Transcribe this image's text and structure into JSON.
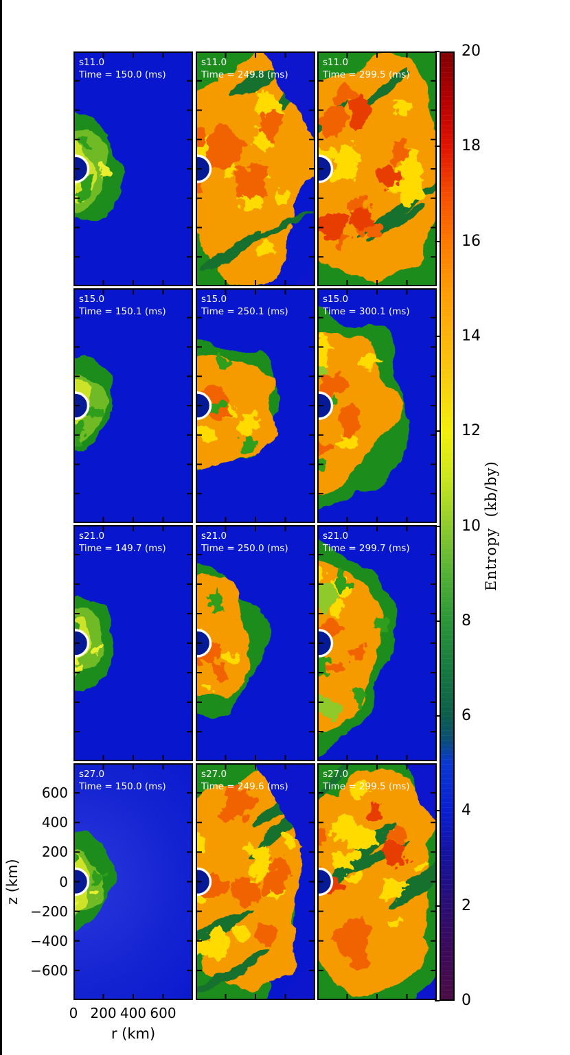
{
  "figure": {
    "xlabel": "r (km)",
    "ylabel": "z (km)",
    "x_tick_labels": [
      "0",
      "200",
      "400",
      "600"
    ],
    "y_tick_labels": [
      "600",
      "400",
      "200",
      "0",
      "−200",
      "−400",
      "−600"
    ],
    "colorbar": {
      "label": "Entropy  (kb/by)",
      "tick_labels": [
        "20",
        "18",
        "16",
        "14",
        "12",
        "10",
        "8",
        "6",
        "4",
        "2",
        "0"
      ]
    }
  },
  "chart_data": {
    "type": "heatmap",
    "title": "",
    "layout": {
      "rows": 4,
      "cols": 3,
      "description": "Grid of 2D axisymmetric core-collapse supernova entropy maps; rows are progenitor models, columns are post-bounce times (~150, ~250, ~300 ms)"
    },
    "row_models": [
      "s11.0",
      "s15.0",
      "s21.0",
      "s27.0"
    ],
    "x": {
      "label": "r (km)",
      "range_km": [
        0,
        800
      ],
      "ticks_km": [
        0,
        200,
        400,
        600
      ]
    },
    "y": {
      "label": "z (km)",
      "range_km": [
        -800,
        800
      ],
      "ticks_km": [
        600,
        400,
        200,
        0,
        -200,
        -400,
        -600
      ]
    },
    "colorbar": {
      "label": "Entropy (kb/by)",
      "min": 0,
      "max": 20,
      "ticks": [
        0,
        2,
        4,
        6,
        8,
        10,
        12,
        14,
        16,
        18,
        20
      ],
      "stops": [
        {
          "v": 20,
          "c": "#7f0000"
        },
        {
          "v": 19,
          "c": "#b40000"
        },
        {
          "v": 18,
          "c": "#e11400"
        },
        {
          "v": 17,
          "c": "#f44d00"
        },
        {
          "v": 16,
          "c": "#fc7a00"
        },
        {
          "v": 15,
          "c": "#fd9b04"
        },
        {
          "v": 14,
          "c": "#fbb40c"
        },
        {
          "v": 13,
          "c": "#f7cf10"
        },
        {
          "v": 12,
          "c": "#f2ef0c"
        },
        {
          "v": 11,
          "c": "#c9e51f"
        },
        {
          "v": 10,
          "c": "#8ecb2e"
        },
        {
          "v": 9,
          "c": "#55b135"
        },
        {
          "v": 8,
          "c": "#2a9638"
        },
        {
          "v": 7,
          "c": "#177a40"
        },
        {
          "v": 6,
          "c": "#0d5d4b"
        },
        {
          "v": 5.5,
          "c": "#0b4f73"
        },
        {
          "v": 5,
          "c": "#0a38cf"
        },
        {
          "v": 4,
          "c": "#0a1fd0"
        },
        {
          "v": 3,
          "c": "#15129b"
        },
        {
          "v": 2,
          "c": "#2a0e74"
        },
        {
          "v": 1,
          "c": "#3c0a58"
        },
        {
          "v": 0,
          "c": "#4b0d45"
        }
      ]
    },
    "background_entropy_color": "#0817cd",
    "pns_ring_radius_km": 90,
    "panels": [
      {
        "model": "s11.0",
        "time_label": "Time = 150.0 (ms)",
        "time_ms": 150.0,
        "row": 0,
        "col": 0,
        "stage": "bubble-green",
        "shock_rx_km": 330,
        "shock_ry_km": 360,
        "halo": false,
        "corners": []
      },
      {
        "model": "s11.0",
        "time_label": "Time = 249.8 (ms)",
        "time_ms": 249.8,
        "row": 0,
        "col": 1,
        "stage": "extended",
        "shock_rx_km": 740,
        "shock_ry_km": 790,
        "halo": false,
        "corners": [
          {
            "pos": "tr",
            "fx": 0.45,
            "fy": 0.42
          },
          {
            "pos": "br",
            "fx": 0.16,
            "fy": 0.1
          }
        ]
      },
      {
        "model": "s11.0",
        "time_label": "Time = 299.5 (ms)",
        "time_ms": 299.5,
        "row": 0,
        "col": 2,
        "stage": "full",
        "shock_rx_km": 800,
        "shock_ry_km": 820,
        "halo": false,
        "corners": []
      },
      {
        "model": "s15.0",
        "time_label": "Time = 150.1 (ms)",
        "time_ms": 150.1,
        "row": 1,
        "col": 0,
        "stage": "bubble-green",
        "shock_rx_km": 285,
        "shock_ry_km": 305,
        "halo": false,
        "corners": []
      },
      {
        "model": "s15.0",
        "time_label": "Time = 250.1 (ms)",
        "time_ms": 250.1,
        "row": 1,
        "col": 1,
        "stage": "bubble-orange",
        "shock_rx_km": 645,
        "shock_ry_km": 450,
        "halo": false,
        "corners": []
      },
      {
        "model": "s15.0",
        "time_label": "Time = 300.1 (ms)",
        "time_ms": 300.1,
        "row": 1,
        "col": 2,
        "stage": "bubble-orange",
        "shock_rx_km": 680,
        "shock_ry_km": 690,
        "halo": false,
        "corners": []
      },
      {
        "model": "s21.0",
        "time_label": "Time = 149.7 (ms)",
        "time_ms": 149.7,
        "row": 2,
        "col": 0,
        "stage": "bubble-green",
        "shock_rx_km": 276,
        "shock_ry_km": 298,
        "halo": false,
        "corners": []
      },
      {
        "model": "s21.0",
        "time_label": "Time = 250.0 (ms)",
        "time_ms": 250.0,
        "row": 2,
        "col": 1,
        "stage": "bubble-orange",
        "shock_rx_km": 483,
        "shock_ry_km": 500,
        "halo": false,
        "corners": []
      },
      {
        "model": "s21.0",
        "time_label": "Time = 299.7 (ms)",
        "time_ms": 299.7,
        "row": 2,
        "col": 2,
        "stage": "bubble-orange",
        "shock_rx_km": 610,
        "shock_ry_km": 700,
        "halo": false,
        "corners": []
      },
      {
        "model": "s27.0",
        "time_label": "Time = 150.0 (ms)",
        "time_ms": 150.0,
        "row": 3,
        "col": 0,
        "stage": "bubble-green",
        "shock_rx_km": 285,
        "shock_ry_km": 325,
        "halo": true,
        "corners": []
      },
      {
        "model": "s27.0",
        "time_label": "Time = 249.6 (ms)",
        "time_ms": 249.6,
        "row": 3,
        "col": 1,
        "stage": "extended",
        "shock_rx_km": 735,
        "shock_ry_km": 800,
        "halo": false,
        "corners": [
          {
            "pos": "tr",
            "fx": 0.5,
            "fy": 0.5
          },
          {
            "pos": "br",
            "fx": 0.35,
            "fy": 0.18
          }
        ]
      },
      {
        "model": "s27.0",
        "time_label": "Time = 299.5 (ms)",
        "time_ms": 299.5,
        "row": 3,
        "col": 2,
        "stage": "full",
        "shock_rx_km": 800,
        "shock_ry_km": 840,
        "halo": false,
        "corners": [
          {
            "pos": "tr",
            "fx": 0.3,
            "fy": 0.3
          },
          {
            "pos": "br",
            "fx": 0.22,
            "fy": 0.12
          }
        ]
      }
    ]
  }
}
